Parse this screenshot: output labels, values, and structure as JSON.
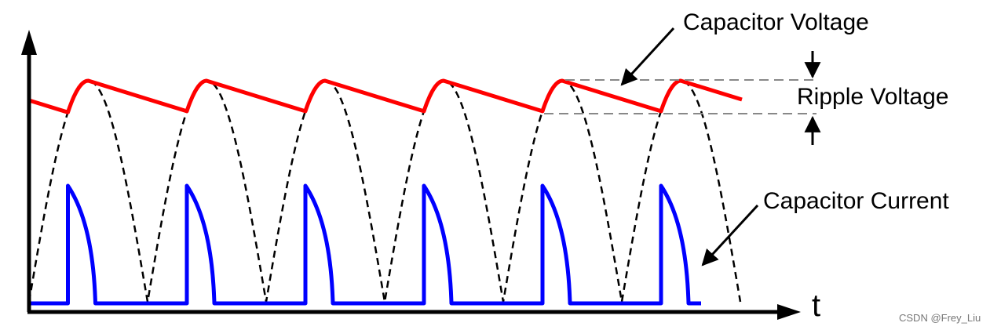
{
  "labels": {
    "capacitor_voltage": "Capacitor Voltage",
    "ripple_voltage": "Ripple Voltage",
    "capacitor_current": "Capacitor Current",
    "time_axis": "t"
  },
  "watermark": "CSDN @Frey_Liu"
}
